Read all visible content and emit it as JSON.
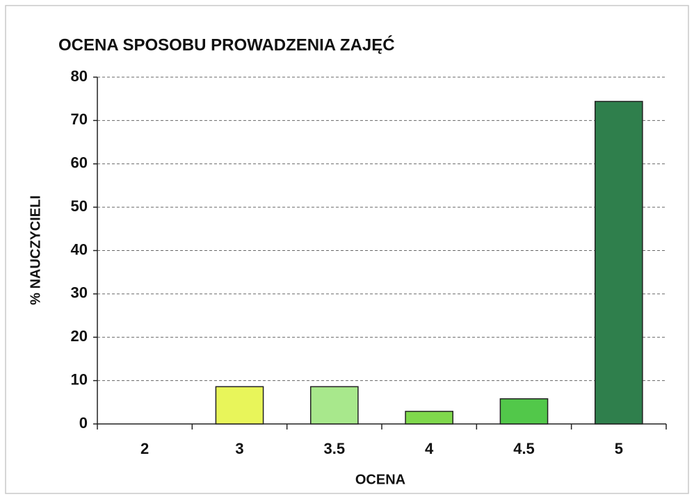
{
  "chart_data": {
    "type": "bar",
    "title": "OCENA SPOSOBU PROWADZENIA ZAJĘĆ",
    "xlabel": "OCENA",
    "ylabel": "% NAUCZYCIELI",
    "categories": [
      "2",
      "3",
      "3.5",
      "4",
      "4.5",
      "5"
    ],
    "values": [
      0,
      8.6,
      8.6,
      2.9,
      5.8,
      74.4
    ],
    "colors": [
      "#e8f55a",
      "#e8f55a",
      "#a8e88c",
      "#7fd84c",
      "#52c84a",
      "#2f7f4c"
    ],
    "ylim": [
      0,
      80
    ],
    "yticks": [
      0,
      10,
      20,
      30,
      40,
      50,
      60,
      70,
      80
    ],
    "grid": true
  }
}
